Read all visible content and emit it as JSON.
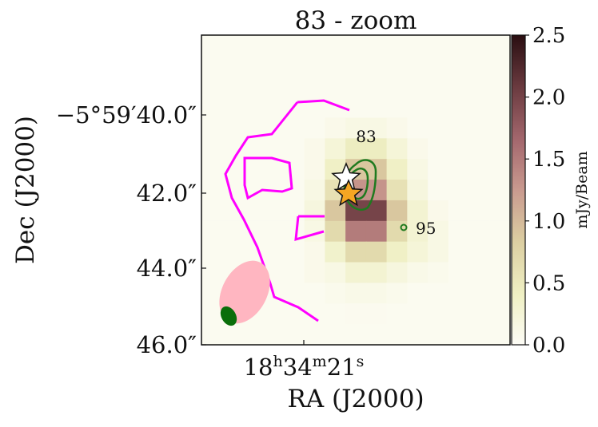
{
  "chart_data": {
    "type": "heatmap",
    "title": "83 - zoom",
    "xlabel": "RA (J2000)",
    "ylabel": "Dec (J2000)",
    "x_ticks": [
      "18h34m21s"
    ],
    "x_tick_parts": {
      "base": "18",
      "h": "h",
      "m_val": "34",
      "m": "m",
      "s_val": "21",
      "s": "s"
    },
    "y_ticks": [
      "−5°59′40.0″",
      "42.0″",
      "44.0″",
      "46.0″"
    ],
    "colorbar": {
      "label": "mJy/Beam",
      "ticks": [
        "0.0",
        "0.5",
        "1.0",
        "1.5",
        "2.0",
        "2.5"
      ],
      "range": [
        0,
        2.5
      ],
      "colors": [
        "#fdfcf6",
        "#eff0c4",
        "#dccfa2",
        "#c99a8f",
        "#a4686e",
        "#6b3b40",
        "#2a0e11"
      ]
    },
    "grid_size": [
      15,
      15
    ],
    "values": [
      [
        0.05,
        0.05,
        0.05,
        0.05,
        0.05,
        0.05,
        0.05,
        0.05,
        0.05,
        0.05,
        0.05,
        0.05,
        0.05,
        0.05,
        0.05
      ],
      [
        0.05,
        0.05,
        0.05,
        0.05,
        0.05,
        0.05,
        0.05,
        0.05,
        0.05,
        0.05,
        0.05,
        0.05,
        0.05,
        0.05,
        0.05
      ],
      [
        0.05,
        0.05,
        0.05,
        0.05,
        0.05,
        0.05,
        0.05,
        0.05,
        0.05,
        0.05,
        0.05,
        0.05,
        0.05,
        0.05,
        0.05
      ],
      [
        0.05,
        0.05,
        0.05,
        0.05,
        0.05,
        0.05,
        0.05,
        0.05,
        0.05,
        0.05,
        0.05,
        0.05,
        0.05,
        0.05,
        0.05
      ],
      [
        0.05,
        0.05,
        0.05,
        0.05,
        0.05,
        0.05,
        0.1,
        0.15,
        0.15,
        0.1,
        0.05,
        0.05,
        0.05,
        0.05,
        0.05
      ],
      [
        0.05,
        0.05,
        0.05,
        0.05,
        0.05,
        0.1,
        0.25,
        0.45,
        0.45,
        0.25,
        0.1,
        0.05,
        0.05,
        0.05,
        0.05
      ],
      [
        0.05,
        0.05,
        0.05,
        0.05,
        0.05,
        0.1,
        0.4,
        0.9,
        0.9,
        0.4,
        0.15,
        0.05,
        0.05,
        0.05,
        0.05
      ],
      [
        0.05,
        0.05,
        0.05,
        0.05,
        0.05,
        0.15,
        0.6,
        1.3,
        1.3,
        0.6,
        0.2,
        0.05,
        0.05,
        0.05,
        0.05
      ],
      [
        0.05,
        0.05,
        0.05,
        0.05,
        0.05,
        0.2,
        0.9,
        2.0,
        2.0,
        0.9,
        0.3,
        0.1,
        0.05,
        0.05,
        0.05
      ],
      [
        0.05,
        0.05,
        0.05,
        0.05,
        0.05,
        0.15,
        0.7,
        1.5,
        1.5,
        0.7,
        0.3,
        0.15,
        0.05,
        0.05,
        0.05
      ],
      [
        0.05,
        0.05,
        0.05,
        0.05,
        0.05,
        0.1,
        0.35,
        0.7,
        0.7,
        0.4,
        0.25,
        0.15,
        0.05,
        0.05,
        0.05
      ],
      [
        0.05,
        0.05,
        0.05,
        0.05,
        0.05,
        0.1,
        0.15,
        0.3,
        0.3,
        0.2,
        0.12,
        0.08,
        0.05,
        0.05,
        0.05
      ],
      [
        0.05,
        0.05,
        0.05,
        0.05,
        0.05,
        0.05,
        0.08,
        0.12,
        0.12,
        0.08,
        0.05,
        0.05,
        0.05,
        0.05,
        0.05
      ],
      [
        0.05,
        0.05,
        0.05,
        0.05,
        0.05,
        0.05,
        0.05,
        0.06,
        0.06,
        0.05,
        0.05,
        0.05,
        0.05,
        0.05,
        0.05
      ],
      [
        0.05,
        0.05,
        0.05,
        0.05,
        0.05,
        0.05,
        0.05,
        0.05,
        0.05,
        0.05,
        0.05,
        0.05,
        0.05,
        0.05,
        0.05
      ]
    ],
    "source_labels": [
      "83",
      "95"
    ],
    "colors": {
      "contour": "#1f7a1f",
      "outline": "#ff00ff",
      "beam_large": "#ffb6c1",
      "beam_small": "#0a6e0a",
      "star_white": "#ffffff",
      "star_orange": "#f5a623"
    }
  }
}
